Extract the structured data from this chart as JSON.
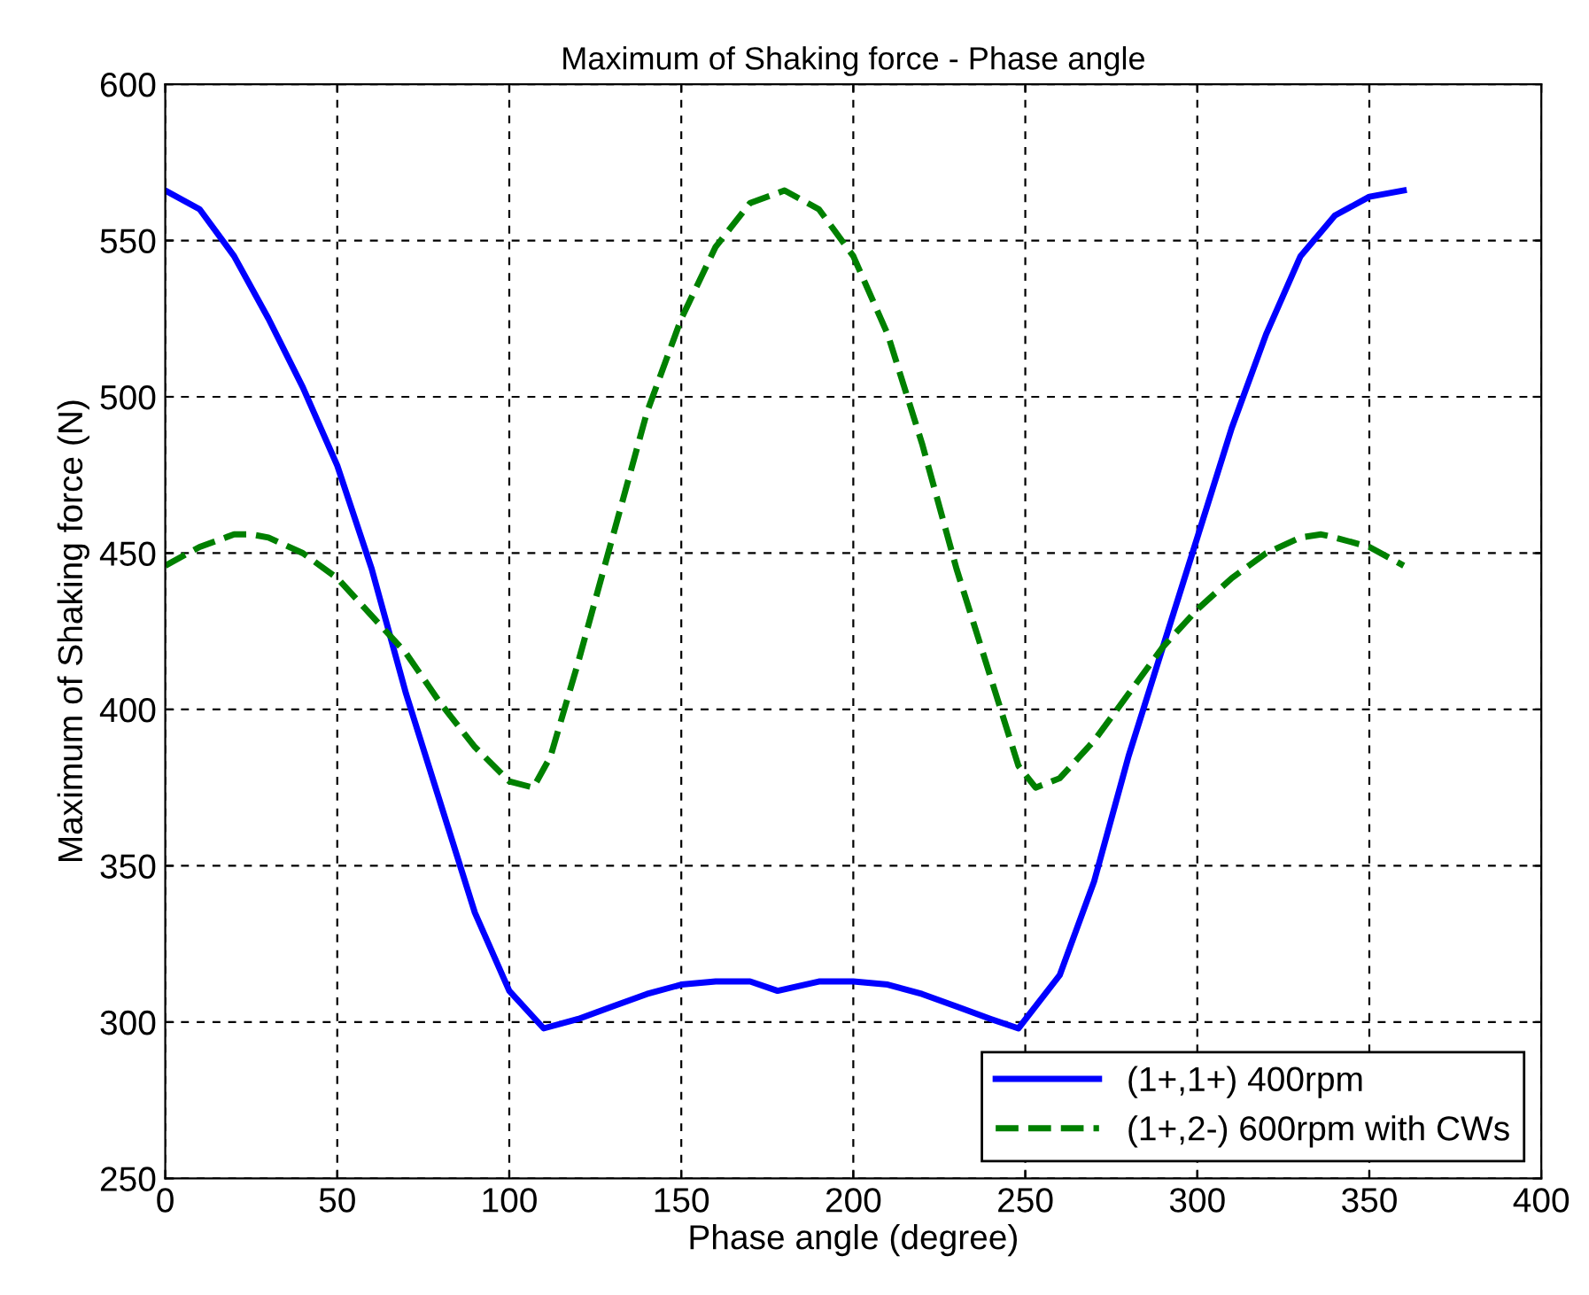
{
  "chart_data": {
    "type": "line",
    "title": "Maximum of Shaking force - Phase angle",
    "xlabel": "Phase angle (degree)",
    "ylabel": "Maximum of Shaking force (N)",
    "xlim": [
      0,
      400
    ],
    "xticks": [
      0,
      50,
      100,
      150,
      200,
      250,
      300,
      350,
      400
    ],
    "ylim": [
      250,
      600
    ],
    "yticks": [
      250,
      300,
      350,
      400,
      450,
      500,
      550,
      600
    ],
    "grid": true,
    "legend": "bottom right",
    "series": [
      {
        "name": "(1+,1+) 400rpm",
        "color": "#0000ff",
        "line_style": "solid",
        "x": [
          0,
          10,
          20,
          30,
          40,
          50,
          60,
          70,
          80,
          90,
          100,
          110,
          120,
          130,
          140,
          150,
          160,
          170,
          178,
          190,
          200,
          210,
          220,
          230,
          240,
          248,
          260,
          270,
          280,
          290,
          300,
          310,
          320,
          330,
          340,
          350,
          360
        ],
        "values": [
          566,
          560,
          545,
          525,
          503,
          478,
          445,
          405,
          370,
          335,
          310,
          298,
          301,
          305,
          309,
          312,
          313,
          313,
          310,
          313,
          313,
          312,
          309,
          305,
          301,
          298,
          315,
          345,
          385,
          420,
          455,
          490,
          520,
          545,
          558,
          564,
          566
        ]
      },
      {
        "name": "(1+,2-) 600rpm with CWs",
        "color": "#008000",
        "line_style": "dashed",
        "x": [
          0,
          10,
          20,
          25,
          30,
          40,
          50,
          60,
          70,
          80,
          90,
          100,
          107,
          112,
          120,
          130,
          140,
          150,
          160,
          170,
          180,
          190,
          200,
          210,
          220,
          230,
          240,
          248,
          253,
          260,
          270,
          280,
          290,
          300,
          310,
          320,
          330,
          336,
          340,
          350,
          360
        ],
        "values": [
          446,
          452,
          456,
          456,
          455,
          450,
          442,
          430,
          418,
          402,
          388,
          377,
          375,
          385,
          415,
          455,
          495,
          525,
          548,
          562,
          566,
          560,
          545,
          520,
          485,
          445,
          410,
          382,
          375,
          378,
          390,
          405,
          420,
          432,
          442,
          450,
          455,
          456,
          455,
          452,
          446
        ]
      }
    ]
  }
}
